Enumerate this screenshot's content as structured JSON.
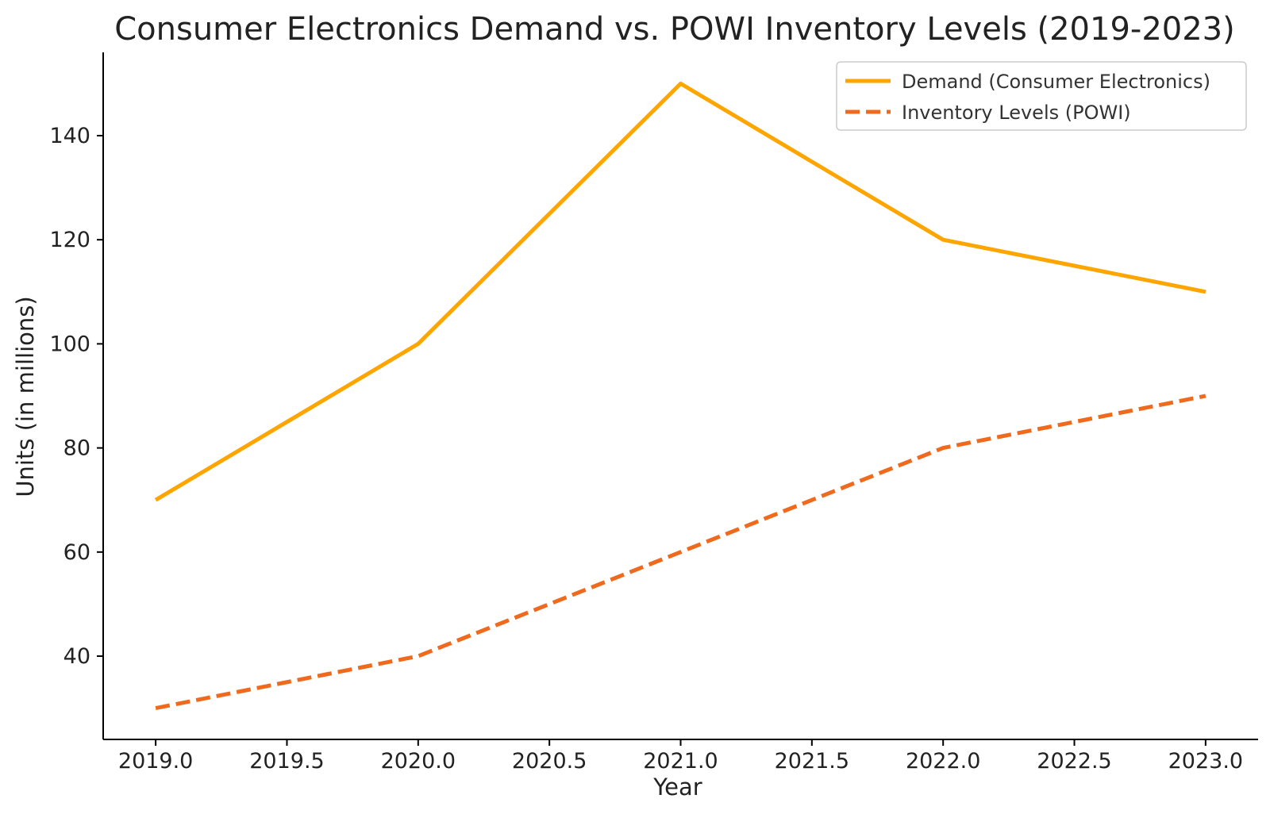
{
  "chart_data": {
    "type": "line",
    "title": "Consumer Electronics Demand vs. POWI Inventory Levels (2019-2023)",
    "xlabel": "Year",
    "ylabel": "Units (in millions)",
    "x": [
      2019,
      2020,
      2021,
      2022,
      2023
    ],
    "xlim": [
      2018.8,
      2023.2
    ],
    "ylim": [
      24,
      156
    ],
    "x_ticks": [
      "2019.0",
      "2019.5",
      "2020.0",
      "2020.5",
      "2021.0",
      "2021.5",
      "2022.0",
      "2022.5",
      "2023.0"
    ],
    "y_ticks": [
      "40",
      "60",
      "80",
      "100",
      "120",
      "140"
    ],
    "grid": false,
    "legend_position": "top-right",
    "series": [
      {
        "name": "Demand (Consumer Electronics)",
        "values": [
          70,
          100,
          150,
          120,
          110
        ],
        "color": "#FFA500",
        "style": "solid"
      },
      {
        "name": "Inventory Levels (POWI)",
        "values": [
          30,
          40,
          60,
          80,
          90
        ],
        "color": "#F06A1E",
        "style": "dashed"
      }
    ]
  }
}
